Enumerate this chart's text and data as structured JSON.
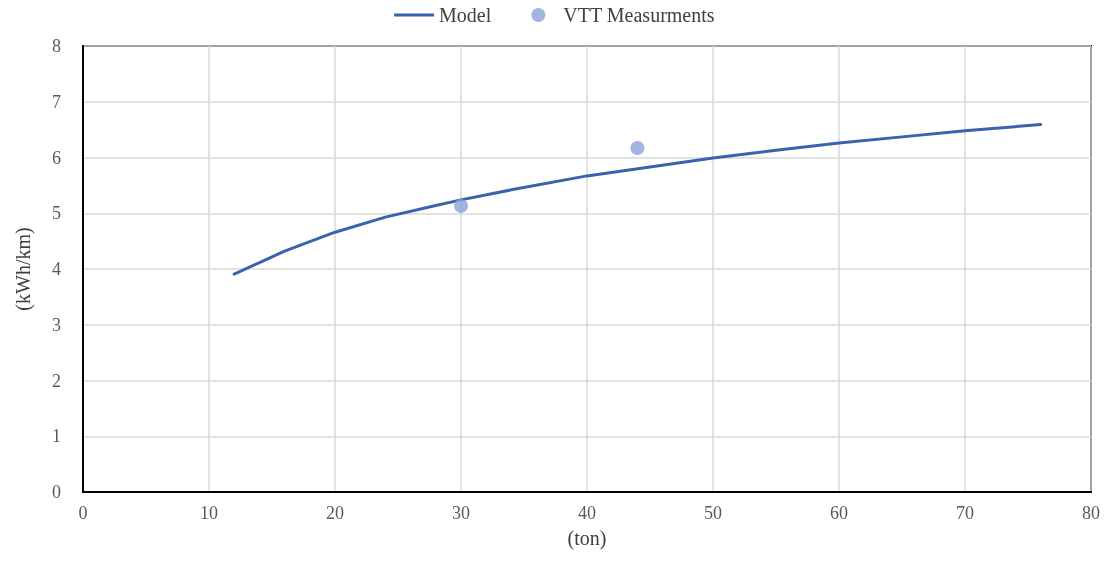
{
  "chart_data": {
    "type": "line",
    "xlabel": "(ton)",
    "ylabel": "(kWh/km)",
    "xlim": [
      0,
      80
    ],
    "xticks": [
      0,
      10,
      20,
      30,
      40,
      50,
      60,
      70,
      80
    ],
    "ylim": [
      0,
      8
    ],
    "yticks": [
      0,
      1,
      2,
      3,
      4,
      5,
      6,
      7,
      8
    ],
    "grid": true,
    "legend": "top",
    "line_style": "solid",
    "series": [
      {
        "name": "Model",
        "marker": "none",
        "color": "#3a63ad",
        "x": [
          12,
          16,
          20,
          24,
          28,
          30,
          34,
          40,
          45,
          50,
          55,
          60,
          65,
          70,
          76
        ],
        "values": [
          3.91,
          4.32,
          4.66,
          4.93,
          5.14,
          5.24,
          5.42,
          5.67,
          5.83,
          5.99,
          6.13,
          6.26,
          6.37,
          6.48,
          6.59
        ]
      },
      {
        "name": "VTT Measurments",
        "type": "scatter",
        "marker": "circle",
        "color": "#8fa3d9",
        "x": [
          30,
          44
        ],
        "values": [
          5.13,
          6.17
        ]
      }
    ]
  }
}
